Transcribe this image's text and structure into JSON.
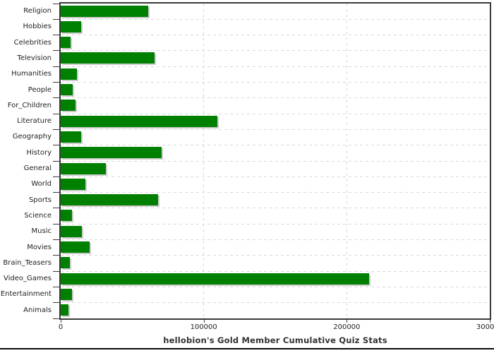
{
  "title": "hellobion's Gold Member Cumulative Quiz Stats",
  "chart_data": {
    "type": "bar",
    "orientation": "horizontal",
    "title": "hellobion's Gold Member Cumulative Quiz Stats",
    "categories": [
      "Religion",
      "Hobbies",
      "Celebrities",
      "Television",
      "Humanities",
      "People",
      "For_Children",
      "Literature",
      "Geography",
      "History",
      "General",
      "World",
      "Sports",
      "Science",
      "Music",
      "Movies",
      "Brain_Teasers",
      "Video_Games",
      "Entertainment",
      "Animals"
    ],
    "values": [
      61200,
      14300,
      7000,
      65800,
      11300,
      8400,
      10400,
      109400,
      14200,
      70700,
      31600,
      17100,
      68200,
      8000,
      15000,
      20200,
      6400,
      215600,
      7800,
      5400
    ],
    "xlabel": "",
    "ylabel": "",
    "xlim": [
      0,
      300000
    ],
    "x_ticks": [
      0,
      100000,
      200000,
      300000
    ],
    "x_tick_labels": [
      "0",
      "100000",
      "200000",
      "300000"
    ],
    "grid": "dashed horizontal and vertical",
    "legend_position": "none",
    "bar_color": "#008000",
    "bar_shadow_color": "#cccccc",
    "grid_color": "#d9d9d9",
    "axis_color": "#3a3a3a",
    "label_color": "#222222",
    "title_color": "#333333",
    "background_color": "#ffffff"
  }
}
